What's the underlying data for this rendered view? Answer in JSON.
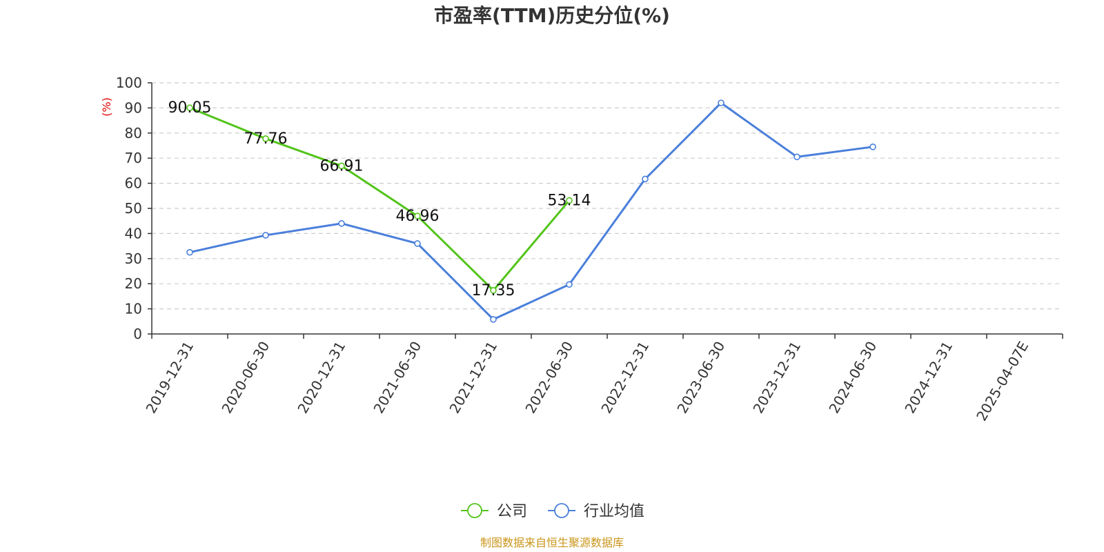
{
  "chart_data": {
    "type": "line",
    "title": "市盈率(TTM)历史分位(%)",
    "ylabel": "(%)",
    "ylim": [
      0,
      100
    ],
    "yticks": [
      0,
      10,
      20,
      30,
      40,
      50,
      60,
      70,
      80,
      90,
      100
    ],
    "categories": [
      "2019-12-31",
      "2020-06-30",
      "2020-12-31",
      "2021-06-30",
      "2021-12-31",
      "2022-06-30",
      "2022-12-31",
      "2023-06-30",
      "2023-12-31",
      "2024-06-30",
      "2024-12-31",
      "2025-04-07E"
    ],
    "grid": true,
    "legend_position": "bottom",
    "series": [
      {
        "name": "公司",
        "color": "#52c41a",
        "values": [
          90.05,
          77.76,
          66.91,
          46.96,
          17.35,
          53.14,
          null,
          null,
          null,
          null,
          null,
          null
        ],
        "data_labels": [
          "90.05",
          "77.76",
          "66.91",
          "46.96",
          "17.35",
          "53.14",
          null,
          null,
          null,
          null,
          null,
          null
        ]
      },
      {
        "name": "行业均值",
        "color": "#4a7fdb",
        "values": [
          32.5,
          39.3,
          44.0,
          36.0,
          5.8,
          19.7,
          61.7,
          92.0,
          70.5,
          74.5,
          null,
          null
        ],
        "data_labels": null
      }
    ]
  },
  "footer": {
    "source": "制图数据来自恒生聚源数据库"
  }
}
